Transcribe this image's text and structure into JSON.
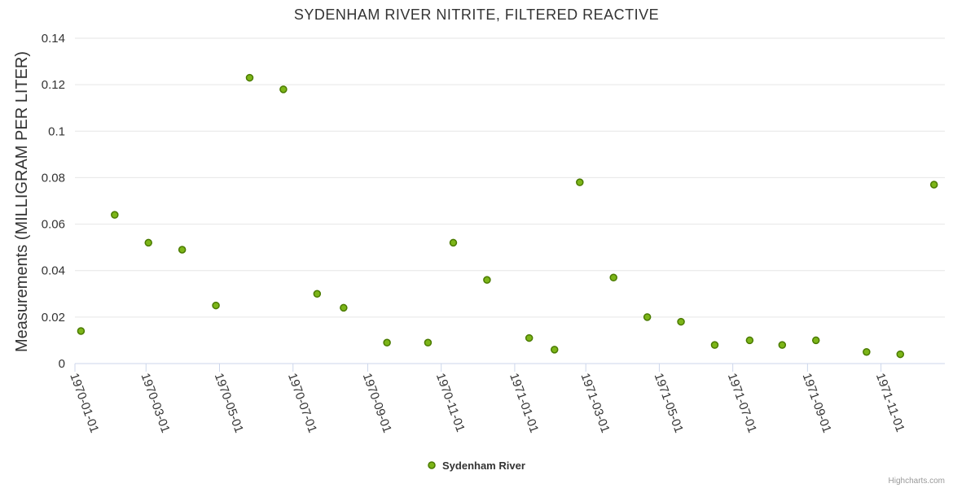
{
  "chart_data": {
    "type": "scatter",
    "title": "SYDENHAM RIVER NITRITE, FILTERED REACTIVE",
    "ylabel": "Measurements (MILLIGRAM PER LITER)",
    "xlabel": "",
    "ylim": [
      0,
      0.14
    ],
    "yticks": [
      "0",
      "0.02",
      "0.04",
      "0.06",
      "0.08",
      "0.1",
      "0.12",
      "0.14"
    ],
    "xlim": [
      "1970-01-01",
      "1971-12-24"
    ],
    "xticks": [
      "1970-01-01",
      "1970-03-01",
      "1970-05-01",
      "1970-07-01",
      "1970-09-01",
      "1970-11-01",
      "1971-01-01",
      "1971-03-01",
      "1971-05-01",
      "1971-07-01",
      "1971-09-01",
      "1971-11-01"
    ],
    "grid": true,
    "legend_position": "bottom-center",
    "series": [
      {
        "name": "Sydenham River",
        "color": "#7cb518",
        "edge_color": "#4a7a00",
        "points": [
          {
            "x": "1970-01-06",
            "y": 0.014
          },
          {
            "x": "1970-02-03",
            "y": 0.064
          },
          {
            "x": "1970-03-03",
            "y": 0.052
          },
          {
            "x": "1970-03-31",
            "y": 0.049
          },
          {
            "x": "1970-04-28",
            "y": 0.025
          },
          {
            "x": "1970-05-26",
            "y": 0.123
          },
          {
            "x": "1970-06-23",
            "y": 0.118
          },
          {
            "x": "1970-07-21",
            "y": 0.03
          },
          {
            "x": "1970-08-12",
            "y": 0.024
          },
          {
            "x": "1970-09-17",
            "y": 0.009
          },
          {
            "x": "1970-10-21",
            "y": 0.009
          },
          {
            "x": "1970-11-11",
            "y": 0.052
          },
          {
            "x": "1970-12-09",
            "y": 0.036
          },
          {
            "x": "1971-01-13",
            "y": 0.011
          },
          {
            "x": "1971-02-03",
            "y": 0.006
          },
          {
            "x": "1971-02-24",
            "y": 0.078
          },
          {
            "x": "1971-03-24",
            "y": 0.037
          },
          {
            "x": "1971-04-21",
            "y": 0.02
          },
          {
            "x": "1971-05-19",
            "y": 0.018
          },
          {
            "x": "1971-06-16",
            "y": 0.008
          },
          {
            "x": "1971-07-15",
            "y": 0.01
          },
          {
            "x": "1971-08-11",
            "y": 0.008
          },
          {
            "x": "1971-09-08",
            "y": 0.01
          },
          {
            "x": "1971-10-20",
            "y": 0.005
          },
          {
            "x": "1971-11-17",
            "y": 0.004
          },
          {
            "x": "1971-12-15",
            "y": 0.077
          }
        ]
      }
    ]
  },
  "credits": "Highcharts.com"
}
